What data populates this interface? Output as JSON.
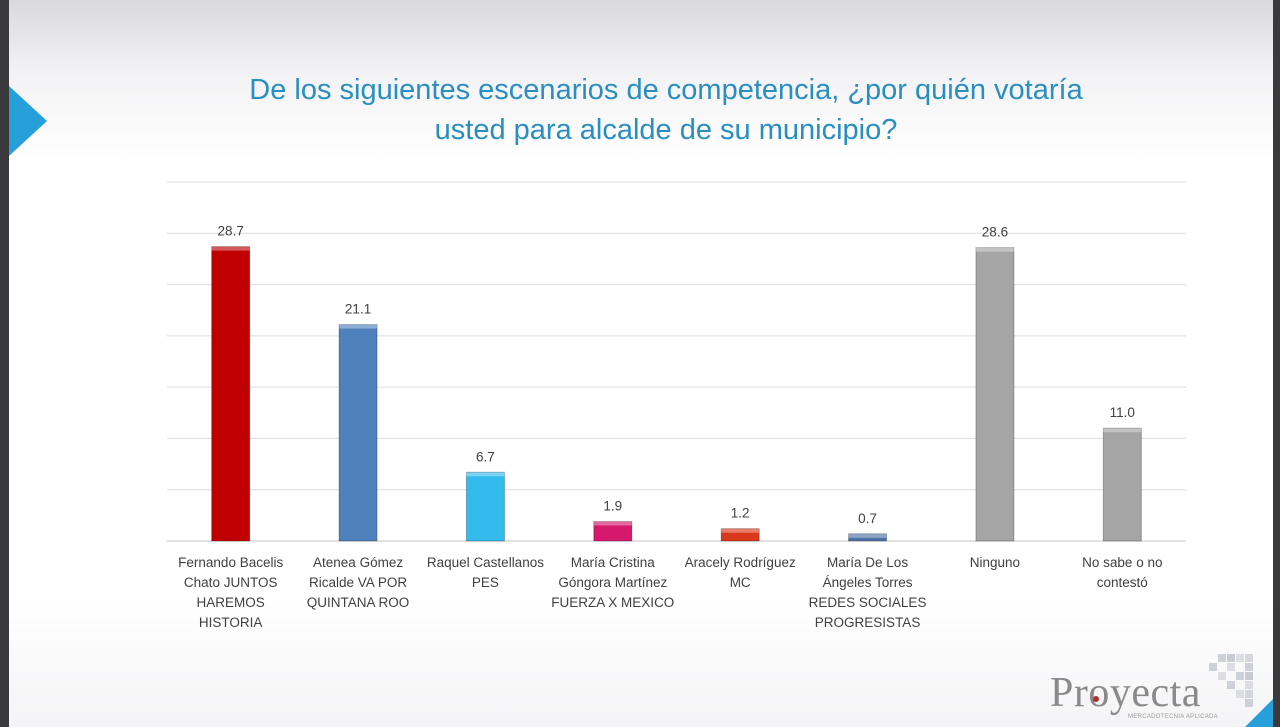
{
  "title_lines": [
    "De los siguientes escenarios de competencia, ¿por quién votaría",
    "usted para alcalde de su municipio?"
  ],
  "logo": {
    "text": "Proyecta",
    "tagline": "MERCADOTECNIA APLICADA"
  },
  "colors": {
    "title": "#2a8ec0",
    "accent": "#27a0d9",
    "grid": "#dcdcdc"
  },
  "chart_data": {
    "type": "bar",
    "categories": [
      [
        "Fernando Bacelis",
        "Chato JUNTOS",
        "HAREMOS",
        "HISTORIA"
      ],
      [
        "Atenea Gómez",
        "Ricalde VA POR",
        "QUINTANA ROO"
      ],
      [
        "Raquel Castellanos",
        "PES"
      ],
      [
        "María Cristina",
        "Góngora Martínez",
        "FUERZA X MEXICO"
      ],
      [
        "Aracely Rodríguez",
        "MC"
      ],
      [
        "María De Los",
        "Ángeles Torres",
        "REDES SOCIALES",
        "PROGRESISTAS"
      ],
      [
        "Ninguno"
      ],
      [
        "No sabe o no",
        "contestó"
      ]
    ],
    "values": [
      28.7,
      21.1,
      6.7,
      1.9,
      1.2,
      0.7,
      28.6,
      11.0
    ],
    "value_labels": [
      "28.7",
      "21.1",
      "6.7",
      "1.9",
      "1.2",
      "0.7",
      "28.6",
      "11.0"
    ],
    "bar_colors": [
      "#c00000",
      "#4f81bd",
      "#33bbee",
      "#d6186f",
      "#d9391a",
      "#4f73a8",
      "#a5a5a5",
      "#a5a5a5"
    ],
    "ylim": [
      0,
      35
    ],
    "grid": true,
    "show_y_axis": false
  }
}
